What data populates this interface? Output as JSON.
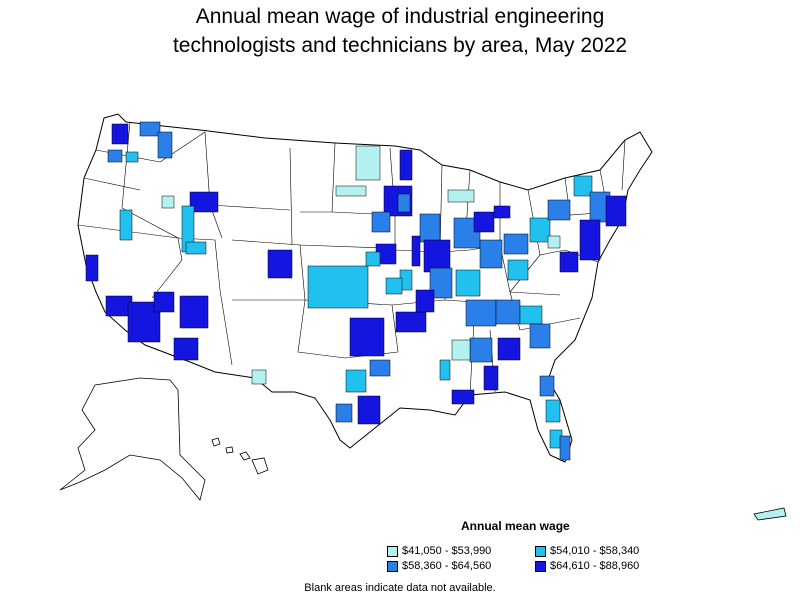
{
  "title": {
    "line1": "Annual mean wage of industrial engineering",
    "line2": "technologists and technicians by area, May 2022"
  },
  "legend": {
    "heading": "Annual mean wage",
    "items": [
      {
        "label": "$41,050 - $53,990",
        "color": "#b3f0f0"
      },
      {
        "label": "$54,010 - $58,340",
        "color": "#22c0ee"
      },
      {
        "label": "$58,360 - $64,560",
        "color": "#2a7fe8"
      },
      {
        "label": "$64,610 - $88,960",
        "color": "#1515e0"
      }
    ]
  },
  "footnote": "Blank areas indicate data not available.",
  "colors": {
    "no_data": "#ffffff",
    "border": "#000000"
  }
}
